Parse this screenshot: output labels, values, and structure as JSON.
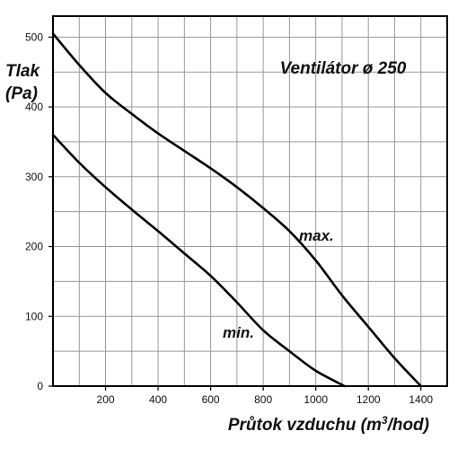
{
  "chart_data": {
    "type": "line",
    "title": "Ventilátor ø 250",
    "xlabel": {
      "main": "Průtok vzduchu (m",
      "sup": "3",
      "tail": "/hod)"
    },
    "ylabel": {
      "line1": "Tlak",
      "line2": "(Pa)"
    },
    "xlim": [
      0,
      1500
    ],
    "ylim": [
      0,
      530
    ],
    "x_ticks": [
      200,
      400,
      600,
      800,
      1000,
      1200,
      1400
    ],
    "x_tick_labels": [
      "200",
      "400",
      "600",
      "800",
      "1000",
      "1200",
      "1400"
    ],
    "y_ticks": [
      0,
      100,
      200,
      300,
      400,
      500
    ],
    "y_tick_labels": [
      "0",
      "100",
      "200",
      "300",
      "400",
      "500"
    ],
    "x_grid": [
      100,
      200,
      300,
      400,
      500,
      600,
      700,
      800,
      900,
      1000,
      1100,
      1200,
      1300,
      1400
    ],
    "y_grid": [
      50,
      100,
      150,
      200,
      250,
      300,
      350,
      400,
      450,
      500
    ],
    "grid": true,
    "series": [
      {
        "name": "max.",
        "x": [
          0,
          100,
          200,
          300,
          400,
          500,
          600,
          700,
          800,
          900,
          1000,
          1100,
          1200,
          1300,
          1400
        ],
        "y": [
          505,
          460,
          420,
          390,
          362,
          337,
          312,
          285,
          255,
          222,
          180,
          130,
          85,
          40,
          0
        ]
      },
      {
        "name": "min.",
        "x": [
          0,
          100,
          200,
          300,
          400,
          500,
          600,
          700,
          800,
          900,
          1000,
          1110
        ],
        "y": [
          360,
          320,
          285,
          253,
          222,
          190,
          158,
          120,
          80,
          50,
          22,
          0
        ]
      }
    ]
  }
}
